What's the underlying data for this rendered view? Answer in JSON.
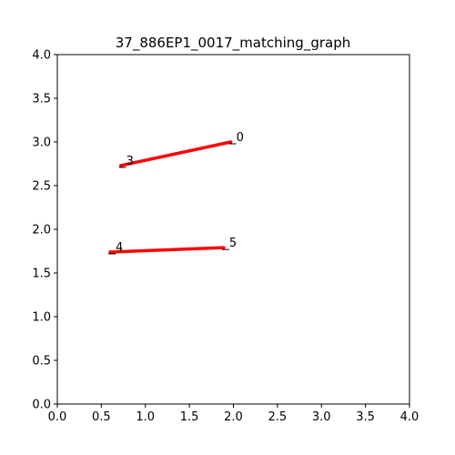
{
  "chart_data": {
    "type": "line",
    "title": "37_886EP1_0017_matching_graph",
    "xlabel": "",
    "ylabel": "",
    "xlim": [
      0,
      4
    ],
    "ylim": [
      0,
      4
    ],
    "grid": false,
    "x_ticks": [
      "0.0",
      "0.5",
      "1.0",
      "1.5",
      "2.0",
      "2.5",
      "3.0",
      "3.5",
      "4.0"
    ],
    "y_ticks": [
      "0.0",
      "0.5",
      "1.0",
      "1.5",
      "2.0",
      "2.5",
      "3.0",
      "3.5",
      "4.0"
    ],
    "nodes": [
      {
        "id": "0",
        "x": 1.97,
        "y": 3.0
      },
      {
        "id": "3",
        "x": 0.72,
        "y": 2.73
      },
      {
        "id": "4",
        "x": 0.6,
        "y": 1.74
      },
      {
        "id": "5",
        "x": 1.89,
        "y": 1.79
      }
    ],
    "edges": [
      {
        "from": "3",
        "to": "0"
      },
      {
        "from": "4",
        "to": "5"
      }
    ],
    "edge_color": "#ff0000"
  }
}
